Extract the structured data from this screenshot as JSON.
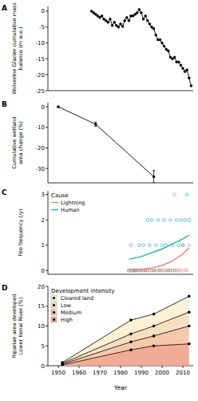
{
  "chart_data": [
    {
      "type": "line",
      "title": "A",
      "y_label": [
        "Wolverine Glacier cumulative mass",
        "balance (m w.e.)"
      ],
      "xlim": [
        1945,
        2015
      ],
      "ylim": [
        -25,
        1.5
      ],
      "yticks": [
        0,
        -5,
        -10,
        -15,
        -20,
        -25
      ],
      "tick_labels": "y",
      "series": [
        {
          "color": "#000000",
          "marker": "circle",
          "x": [
            1966,
            1967,
            1968,
            1969,
            1970,
            1971,
            1972,
            1973,
            1974,
            1975,
            1976,
            1977,
            1978,
            1979,
            1980,
            1981,
            1982,
            1983,
            1984,
            1985,
            1986,
            1987,
            1988,
            1989,
            1990,
            1991,
            1992,
            1993,
            1994,
            1995,
            1996,
            1997,
            1998,
            1999,
            2000,
            2001,
            2002,
            2003,
            2004,
            2005,
            2006,
            2007,
            2008,
            2009,
            2010,
            2011,
            2012,
            2013,
            2014
          ],
          "values": [
            0,
            -0.5,
            -1,
            -1.5,
            -2,
            -1.5,
            -2.5,
            -3,
            -3.5,
            -2.5,
            -4.5,
            -3.5,
            -4.5,
            -5,
            -4,
            -4.8,
            -3,
            -2,
            -3,
            -1.5,
            -1.5,
            -1,
            -0.5,
            0.5,
            -0.5,
            -2.5,
            -1.5,
            -3,
            -4,
            -5,
            -5.5,
            -7.5,
            -9,
            -9,
            -10,
            -11,
            -12,
            -12.5,
            -14.5,
            -15,
            -14.5,
            -16,
            -16,
            -17,
            -18,
            -19,
            -18.5,
            -21,
            -23.5
          ]
        }
      ]
    },
    {
      "type": "line",
      "title": "B",
      "y_label": [
        "Cumulative wetland",
        "area change (%)"
      ],
      "xlim": [
        1945,
        2015
      ],
      "ylim": [
        -37,
        2
      ],
      "yticks": [
        0,
        -10,
        -20,
        -30
      ],
      "tick_labels": "y",
      "series": [
        {
          "color": "#000000",
          "marker": "circle",
          "x": [
            1950,
            1968,
            1996
          ],
          "values": [
            0,
            -8.5,
            -34
          ],
          "errors": [
            0,
            1,
            3
          ]
        }
      ]
    },
    {
      "type": "scatter",
      "title": "C",
      "y_label": [
        "Fire frequency (/y)"
      ],
      "xlim": [
        1945,
        2015
      ],
      "ylim": [
        -0.15,
        3.15
      ],
      "yticks": [
        0,
        1,
        2,
        3
      ],
      "tick_labels": "y",
      "legend": "upper left",
      "legend_title": "Cause",
      "series": [
        {
          "name": "Lightning",
          "color": "#f08070",
          "type": "scatter",
          "marker": "open-circle",
          "x": [
            1984,
            1985,
            1986,
            1987,
            1988,
            1989,
            1990,
            1991,
            1992,
            1993,
            1994,
            1995,
            1996,
            1997,
            1998,
            1999,
            2000,
            2001,
            2002,
            2003,
            2004,
            2005,
            2006,
            2007,
            2008,
            2009,
            2010,
            2011,
            2012,
            2013
          ],
          "values": [
            0,
            0,
            0,
            0,
            0,
            0,
            0,
            0,
            0,
            0,
            0,
            0,
            0,
            0,
            0,
            0,
            0,
            0,
            0,
            0,
            0,
            0,
            3,
            0,
            0,
            0,
            1,
            0,
            0,
            1
          ]
        },
        {
          "name": "Human",
          "color": "#20b2aa",
          "type": "scatter",
          "marker": "open-circle",
          "x": [
            1984,
            1985,
            1986,
            1987,
            1988,
            1989,
            1990,
            1991,
            1992,
            1993,
            1994,
            1995,
            1996,
            1997,
            1998,
            1999,
            2000,
            2001,
            2002,
            2003,
            2004,
            2005,
            2006,
            2007,
            2008,
            2009,
            2010,
            2011,
            2012,
            2013
          ],
          "values": [
            0,
            1,
            0,
            0,
            0,
            1,
            0,
            1,
            0,
            2,
            1,
            2,
            0,
            1,
            2,
            0,
            1,
            2,
            1,
            0,
            2,
            1,
            0,
            2,
            1,
            2,
            1,
            2,
            3,
            2
          ]
        },
        {
          "name": "Lightning",
          "color": "#f08070",
          "type": "line",
          "x": [
            1984,
            1990,
            1995,
            2000,
            2005,
            2010,
            2013
          ],
          "values": [
            0.02,
            0.05,
            0.1,
            0.2,
            0.38,
            0.65,
            0.9
          ]
        },
        {
          "name": "Human",
          "color": "#20b2aa",
          "type": "line",
          "x": [
            1984,
            1990,
            1995,
            2000,
            2005,
            2010,
            2013
          ],
          "values": [
            0.45,
            0.55,
            0.7,
            0.85,
            1.05,
            1.25,
            1.4
          ]
        }
      ]
    },
    {
      "type": "area",
      "stacked": true,
      "title": "D",
      "y_label": [
        "Riparian area developed",
        "Lower Kenai River (%)"
      ],
      "x_label": "Year",
      "xlim": [
        1945,
        2015
      ],
      "ylim": [
        0,
        20
      ],
      "yticks": [
        0,
        5,
        10,
        15,
        20
      ],
      "xticks": [
        1950,
        1960,
        1970,
        1980,
        1990,
        2000,
        2010
      ],
      "legend": "upper left",
      "legend_title": "Development intensity",
      "series": [
        {
          "name": "Cleared land",
          "color": "#fdf1d6",
          "x": [
            1952,
            1985,
            1996,
            2013
          ],
          "values": [
            0.2,
            3.5,
            3,
            4
          ]
        },
        {
          "name": "Low",
          "color": "#fbdfc2",
          "x": [
            1952,
            1985,
            1996,
            2013
          ],
          "values": [
            0.2,
            2,
            2.5,
            3.5
          ]
        },
        {
          "name": "Medium",
          "color": "#f8c8aa",
          "x": [
            1952,
            1985,
            1996,
            2013
          ],
          "values": [
            0.2,
            2,
            2.5,
            4.5
          ]
        },
        {
          "name": "High",
          "color": "#f2ab94",
          "x": [
            1952,
            1985,
            1996,
            2013
          ],
          "values": [
            0.2,
            4,
            5,
            5.5
          ]
        }
      ]
    }
  ]
}
